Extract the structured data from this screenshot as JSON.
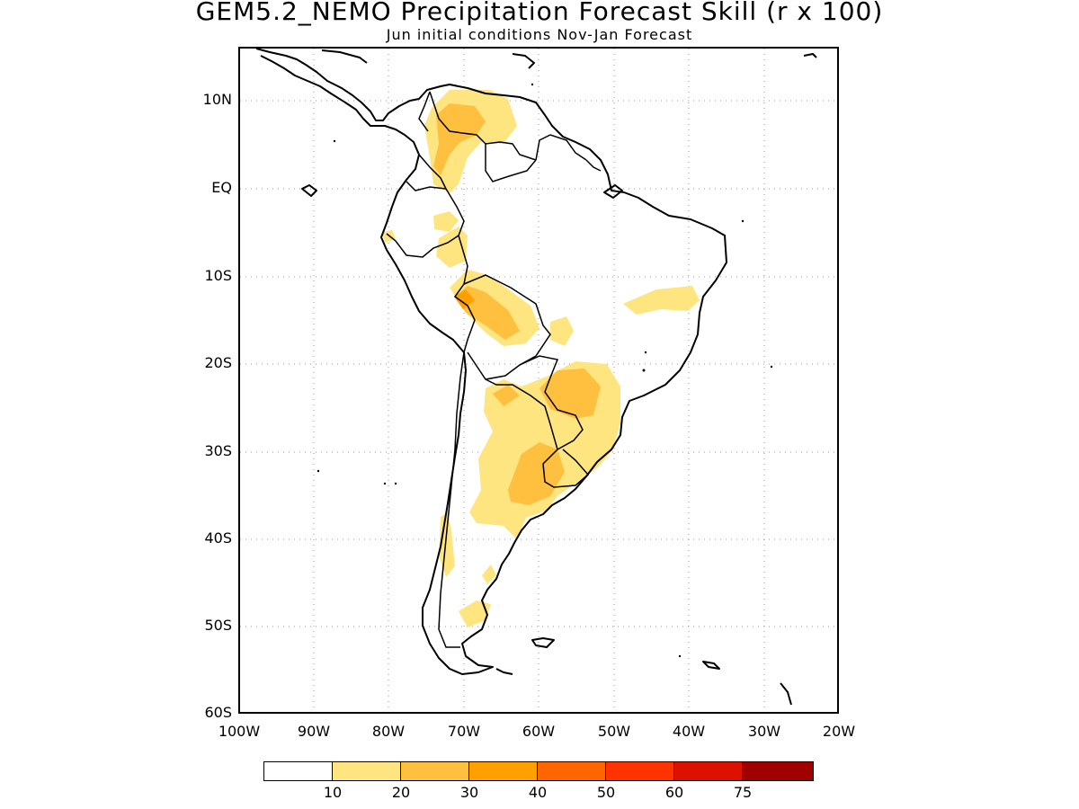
{
  "header": {
    "title": "GEM5.2_NEMO Precipitation Forecast Skill (r x 100)",
    "subtitle": "Jun initial conditions  Nov-Jan Forecast"
  },
  "axes": {
    "lat_labels": [
      "10N",
      "EQ",
      "10S",
      "20S",
      "30S",
      "40S",
      "50S",
      "60S"
    ],
    "lon_labels": [
      "100W",
      "90W",
      "80W",
      "70W",
      "60W",
      "50W",
      "40W",
      "30W",
      "20W"
    ],
    "lat_range": [
      -60,
      15
    ],
    "lon_range": [
      -100,
      -20
    ]
  },
  "colorbar": {
    "labels": [
      "10",
      "20",
      "30",
      "40",
      "50",
      "60",
      "75"
    ],
    "colors": [
      "#ffffff",
      "#ffe57f",
      "#ffbf3f",
      "#ff9f00",
      "#ff6600",
      "#ff3300",
      "#dd1100",
      "#a10000"
    ]
  }
}
